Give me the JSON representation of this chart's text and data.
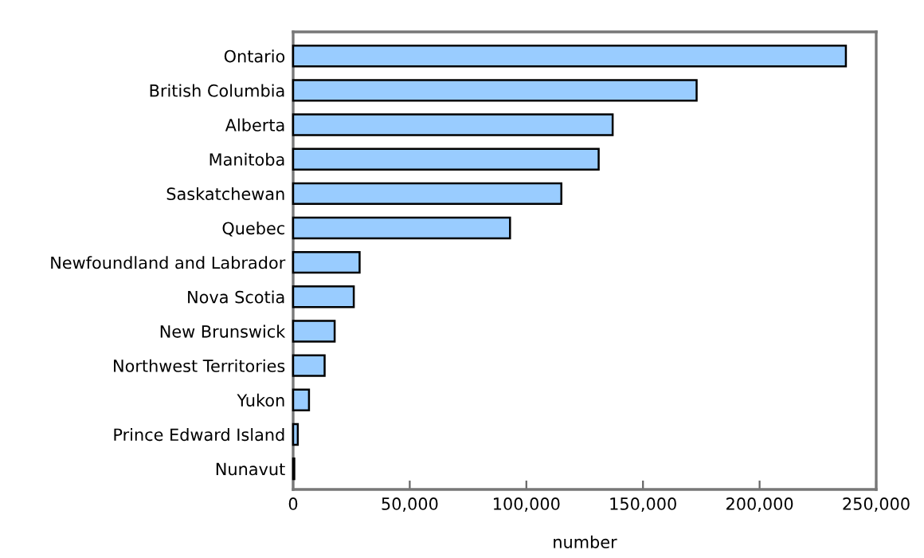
{
  "chart_data": {
    "type": "bar",
    "orientation": "horizontal",
    "xlabel": "number",
    "categories": [
      "Ontario",
      "British Columbia",
      "Alberta",
      "Manitoba",
      "Saskatchewan",
      "Quebec",
      "Newfoundland and Labrador",
      "Nova Scotia",
      "New Brunswick",
      "Northwest Territories",
      "Yukon",
      "Prince Edward Island",
      "Nunavut"
    ],
    "values": [
      237000,
      173000,
      137000,
      131000,
      115000,
      93000,
      28500,
      26000,
      17800,
      13500,
      6800,
      2000,
      500
    ],
    "color": "#99ccff",
    "xlim": [
      0,
      250000
    ],
    "xticks": [
      {
        "value": 0,
        "label": "0"
      },
      {
        "value": 50000,
        "label": "50,000"
      },
      {
        "value": 100000,
        "label": "100,000"
      },
      {
        "value": 150000,
        "label": "150,000"
      },
      {
        "value": 200000,
        "label": "200,000"
      },
      {
        "value": 250000,
        "label": "250,000"
      }
    ],
    "grid": false,
    "legend": false
  }
}
